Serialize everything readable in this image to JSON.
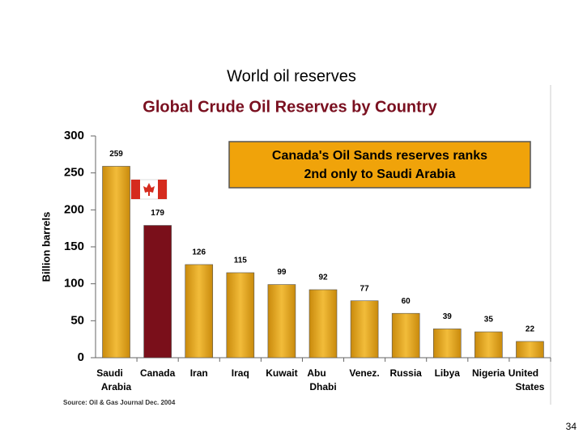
{
  "slide_title": "World oil reserves",
  "page_number": "34",
  "chart_data": {
    "type": "bar",
    "title": "Global Crude Oil Reserves by Country",
    "y_label": "Billion barrels",
    "annotation": [
      "Canada's Oil Sands reserves ranks",
      "2nd only to Saudi Arabia"
    ],
    "source": "Source: Oil & Gas Journal Dec. 2004",
    "categories": [
      "Saudi Arabia",
      "Canada",
      "Iran",
      "Iraq",
      "Kuwait",
      "Abu Dhabi",
      "Venez.",
      "Russia",
      "Libya",
      "Nigeria",
      "United States"
    ],
    "values": [
      259,
      179,
      126,
      115,
      99,
      92,
      77,
      60,
      39,
      35,
      22
    ],
    "colors": [
      "#e8a317",
      "#7a0f1a",
      "#e8a317",
      "#e8a317",
      "#e8a317",
      "#e8a317",
      "#e8a317",
      "#e8a317",
      "#e8a317",
      "#e8a317",
      "#e8a317"
    ],
    "ylim": [
      0,
      300
    ],
    "yticks": [
      0,
      50,
      100,
      150,
      200,
      250,
      300
    ],
    "grid": false
  }
}
